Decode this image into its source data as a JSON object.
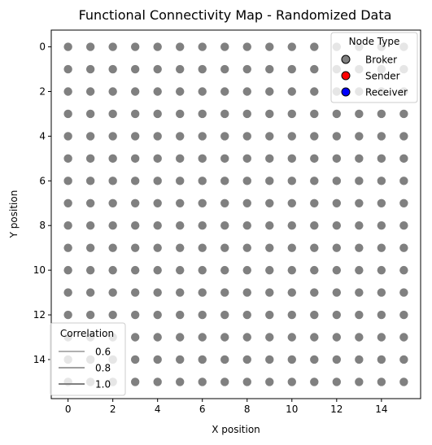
{
  "chart_data": {
    "type": "scatter",
    "title": "Functional Connectivity Map - Randomized Data",
    "xlabel": "X position",
    "ylabel": "Y position",
    "xlim": [
      -0.75,
      15.75
    ],
    "ylim": [
      15.75,
      -0.75
    ],
    "y_inverted": true,
    "grid": false,
    "xticks": [
      "0",
      "2",
      "4",
      "6",
      "8",
      "10",
      "12",
      "14"
    ],
    "yticks": [
      "0",
      "2",
      "4",
      "6",
      "8",
      "10",
      "12",
      "14"
    ],
    "xtick_values": [
      0,
      2,
      4,
      6,
      8,
      10,
      12,
      14
    ],
    "ytick_values": [
      0,
      2,
      4,
      6,
      8,
      10,
      12,
      14
    ],
    "nodes": {
      "grid_x": [
        0,
        15
      ],
      "grid_y": [
        0,
        15
      ],
      "node_type": "Broker",
      "color": "#808080"
    },
    "legend_node_type": {
      "title": "Node Type",
      "placement": "upper right",
      "entries": [
        {
          "label": "Broker",
          "color": "#808080"
        },
        {
          "label": "Sender",
          "color": "#ff0000"
        },
        {
          "label": "Receiver",
          "color": "#0000ff"
        }
      ]
    },
    "legend_correlation": {
      "title": "Correlation",
      "placement": "lower left",
      "color": "#808080",
      "entries": [
        {
          "label": "0.6",
          "value": 0.6
        },
        {
          "label": "0.8",
          "value": 0.8
        },
        {
          "label": "1.0",
          "value": 1.0
        }
      ]
    }
  }
}
